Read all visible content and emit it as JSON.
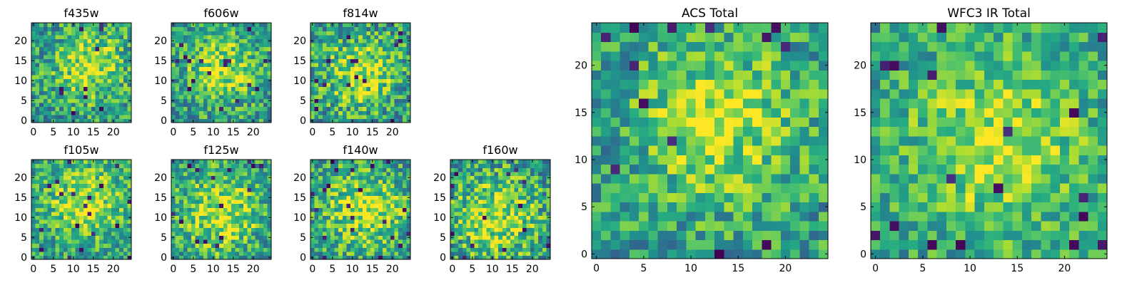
{
  "chart_data": [
    {
      "type": "heatmap",
      "title": "f435w",
      "xlim": [
        -0.5,
        24.5
      ],
      "ylim": [
        -0.5,
        24.5
      ],
      "xticks": [
        0,
        5,
        10,
        15,
        20
      ],
      "yticks": [
        0,
        5,
        10,
        15,
        20
      ],
      "grid": [
        25,
        25
      ],
      "peak": [
        14,
        14
      ],
      "noise": 0.55,
      "bright_spread": 6,
      "seed": 11,
      "colormap": "viridis"
    },
    {
      "type": "heatmap",
      "title": "f606w",
      "xlim": [
        -0.5,
        24.5
      ],
      "ylim": [
        -0.5,
        24.5
      ],
      "xticks": [
        0,
        5,
        10,
        15,
        20
      ],
      "yticks": [
        0,
        5,
        10,
        15,
        20
      ],
      "grid": [
        25,
        25
      ],
      "peak": [
        12,
        13
      ],
      "noise": 0.55,
      "bright_spread": 6,
      "seed": 23,
      "colormap": "viridis"
    },
    {
      "type": "heatmap",
      "title": "f814w",
      "xlim": [
        -0.5,
        24.5
      ],
      "ylim": [
        -0.5,
        24.5
      ],
      "xticks": [
        0,
        5,
        10,
        15,
        20
      ],
      "yticks": [
        0,
        5,
        10,
        15,
        20
      ],
      "grid": [
        25,
        25
      ],
      "peak": [
        12,
        12
      ],
      "noise": 0.6,
      "bright_spread": 6,
      "seed": 37,
      "colormap": "viridis"
    },
    {
      "type": "heatmap",
      "title": "f105w",
      "xlim": [
        -0.5,
        24.5
      ],
      "ylim": [
        -0.5,
        24.5
      ],
      "xticks": [
        0,
        5,
        10,
        15,
        20
      ],
      "yticks": [
        0,
        5,
        10,
        15,
        20
      ],
      "grid": [
        25,
        25
      ],
      "peak": [
        13,
        14
      ],
      "noise": 0.5,
      "bright_spread": 7,
      "seed": 41,
      "colormap": "viridis"
    },
    {
      "type": "heatmap",
      "title": "f125w",
      "xlim": [
        -0.5,
        24.5
      ],
      "ylim": [
        -0.5,
        24.5
      ],
      "xticks": [
        0,
        5,
        10,
        15,
        20
      ],
      "yticks": [
        0,
        5,
        10,
        15,
        20
      ],
      "grid": [
        25,
        25
      ],
      "peak": [
        12,
        11
      ],
      "noise": 0.55,
      "bright_spread": 7,
      "seed": 53,
      "colormap": "viridis"
    },
    {
      "type": "heatmap",
      "title": "f140w",
      "xlim": [
        -0.5,
        24.5
      ],
      "ylim": [
        -0.5,
        24.5
      ],
      "xticks": [
        0,
        5,
        10,
        15,
        20
      ],
      "yticks": [
        0,
        5,
        10,
        15,
        20
      ],
      "grid": [
        25,
        25
      ],
      "peak": [
        13,
        12
      ],
      "noise": 0.55,
      "bright_spread": 7,
      "seed": 67,
      "colormap": "viridis"
    },
    {
      "type": "heatmap",
      "title": "f160w",
      "xlim": [
        -0.5,
        24.5
      ],
      "ylim": [
        -0.5,
        24.5
      ],
      "xticks": [
        0,
        5,
        10,
        15,
        20
      ],
      "yticks": [
        0,
        5,
        10,
        15,
        20
      ],
      "grid": [
        25,
        25
      ],
      "peak": [
        11,
        10
      ],
      "noise": 0.6,
      "bright_spread": 7,
      "seed": 79,
      "colormap": "viridis"
    },
    {
      "type": "heatmap",
      "title": "ACS Total",
      "xlim": [
        -0.5,
        24.5
      ],
      "ylim": [
        -0.5,
        24.5
      ],
      "xticks": [
        0,
        5,
        10,
        15,
        20
      ],
      "yticks": [
        0,
        5,
        10,
        15,
        20
      ],
      "grid": [
        25,
        25
      ],
      "peak": [
        13,
        14
      ],
      "noise": 0.5,
      "bright_spread": 6,
      "seed": 97,
      "colormap": "viridis"
    },
    {
      "type": "heatmap",
      "title": "WFC3 IR Total",
      "xlim": [
        -0.5,
        24.5
      ],
      "ylim": [
        -0.5,
        24.5
      ],
      "xticks": [
        0,
        5,
        10,
        15,
        20
      ],
      "yticks": [
        0,
        5,
        10,
        15,
        20
      ],
      "grid": [
        25,
        25
      ],
      "peak": [
        13,
        12
      ],
      "noise": 0.45,
      "bright_spread": 7,
      "seed": 113,
      "colormap": "viridis"
    }
  ]
}
